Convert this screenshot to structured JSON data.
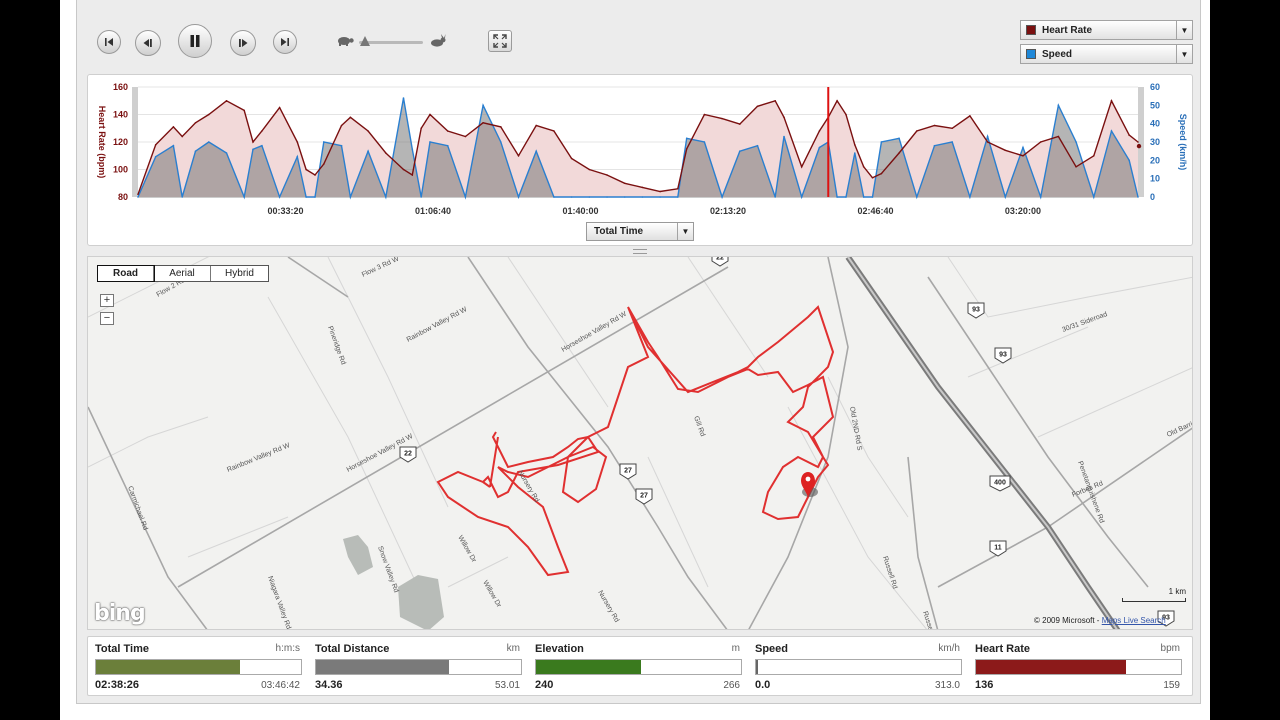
{
  "toolbar": {
    "buttons": [
      "skip-start",
      "step-back",
      "pause",
      "step-forward",
      "skip-end",
      "fullscreen"
    ],
    "speed_slider": {
      "value": 0.05,
      "min_icon": "turtle-icon",
      "max_icon": "rabbit-icon"
    },
    "metric_primary": {
      "label": "Heart Rate",
      "color": "#7a1010"
    },
    "metric_secondary": {
      "label": "Speed",
      "color": "#1f88d8"
    }
  },
  "chart_data": {
    "type": "area",
    "xlabel": "",
    "y1label": "Heart Rate (bpm)",
    "y2label": "Speed (km/h)",
    "y1lim": [
      80,
      160
    ],
    "y2lim": [
      0,
      60
    ],
    "y1ticks": [
      "160",
      "140",
      "120",
      "100",
      "80"
    ],
    "y2ticks": [
      "60",
      "50",
      "40",
      "30",
      "20",
      "10",
      "0"
    ],
    "xticks": [
      "00:33:20",
      "01:06:40",
      "01:40:00",
      "02:13:20",
      "02:46:40",
      "03:20:00"
    ],
    "x_minutes": [
      0,
      4,
      8,
      10,
      13,
      16,
      20,
      24,
      26,
      28,
      32,
      36,
      38,
      40,
      42,
      46,
      48,
      52,
      56,
      60,
      62,
      64,
      66,
      70,
      74,
      78,
      82,
      86,
      90,
      94,
      98,
      102,
      106,
      110,
      114,
      118,
      122,
      124,
      128,
      132,
      136,
      140,
      144,
      146,
      150,
      154,
      156,
      158,
      160,
      162,
      164,
      166,
      168,
      172,
      176,
      180,
      184,
      188,
      192,
      196,
      200,
      204,
      208,
      212,
      216,
      220,
      224,
      226
    ],
    "heart_rate": [
      82,
      118,
      131,
      124,
      134,
      140,
      150,
      143,
      120,
      128,
      145,
      120,
      100,
      96,
      104,
      132,
      138,
      128,
      112,
      100,
      96,
      130,
      140,
      128,
      124,
      134,
      131,
      110,
      132,
      128,
      108,
      100,
      96,
      90,
      87,
      84,
      86,
      115,
      140,
      137,
      133,
      146,
      150,
      138,
      102,
      128,
      138,
      150,
      140,
      118,
      102,
      94,
      97,
      112,
      128,
      132,
      130,
      139,
      120,
      114,
      110,
      120,
      124,
      102,
      110,
      150,
      125,
      120
    ],
    "heart_rate_max": 159,
    "speed": [
      0,
      22,
      28,
      0,
      25,
      30,
      24,
      0,
      26,
      28,
      0,
      22,
      0,
      0,
      30,
      28,
      0,
      25,
      0,
      54,
      26,
      0,
      30,
      28,
      0,
      50,
      30,
      0,
      25,
      0,
      0,
      0,
      0,
      0,
      0,
      0,
      0,
      32,
      30,
      0,
      25,
      28,
      0,
      33,
      0,
      27,
      30,
      0,
      0,
      24,
      0,
      0,
      30,
      32,
      0,
      28,
      30,
      0,
      33,
      0,
      27,
      0,
      50,
      30,
      0,
      36,
      20,
      0
    ],
    "speed_max": 313.0,
    "marker_minutes": 156,
    "x_selector": "Total Time"
  },
  "map": {
    "tabs": [
      {
        "label": "Road",
        "active": true
      },
      {
        "label": "Aerial",
        "active": false
      },
      {
        "label": "Hybrid",
        "active": false
      }
    ],
    "zoom_in": "+",
    "zoom_out": "−",
    "logo": "bing",
    "copyright": "© 2009 Microsoft - ",
    "copyright_link": "Maps Live Search",
    "scale_label": "1 km",
    "road_labels": [
      {
        "text": "Flow 2 Rd W"
      },
      {
        "text": "Flow 3 Rd W"
      },
      {
        "text": "Rainbow Valley Rd W"
      },
      {
        "text": "Horseshoe Valley Rd W"
      },
      {
        "text": "Horseshoe Valley Rd W"
      },
      {
        "text": "Rainbow Valley Rd W"
      },
      {
        "text": "Pineridge Rd"
      },
      {
        "text": "Gill Rd"
      },
      {
        "text": "Nursery Rd"
      },
      {
        "text": "Nursery Rd"
      },
      {
        "text": "Willow Dr"
      },
      {
        "text": "Willow Dr"
      },
      {
        "text": "Old 2ND Rd S"
      },
      {
        "text": "Russell Rd"
      },
      {
        "text": "Forbes Rd"
      },
      {
        "text": "Old Barrie Rd W"
      },
      {
        "text": "Penetanguishene Rd"
      },
      {
        "text": "30/31 Sideroad"
      },
      {
        "text": "Carmichael Rd"
      },
      {
        "text": "Niagara Valley Rd"
      },
      {
        "text": "Snow Valley Rd"
      },
      {
        "text": "Russell"
      }
    ],
    "highway_shields": [
      "22",
      "93",
      "93",
      "22",
      "27",
      "27",
      "400",
      "11",
      "93"
    ]
  },
  "stats": [
    {
      "name": "Total Time",
      "unit": "h:m:s",
      "value": "02:38:26",
      "max": "03:46:42",
      "fraction": 0.7,
      "color": "#6b7f3a"
    },
    {
      "name": "Total Distance",
      "unit": "km",
      "value": "34.36",
      "max": "53.01",
      "fraction": 0.65,
      "color": "#7a7a7a"
    },
    {
      "name": "Elevation",
      "unit": "m",
      "value": "240",
      "max": "266",
      "fraction": 0.51,
      "color": "#3a7a1e"
    },
    {
      "name": "Speed",
      "unit": "km/h",
      "value": "0.0",
      "max": "313.0",
      "fraction": 0.0,
      "color": "#777"
    },
    {
      "name": "Heart Rate",
      "unit": "bpm",
      "value": "136",
      "max": "159",
      "fraction": 0.73,
      "color": "#8c1a1a"
    }
  ]
}
